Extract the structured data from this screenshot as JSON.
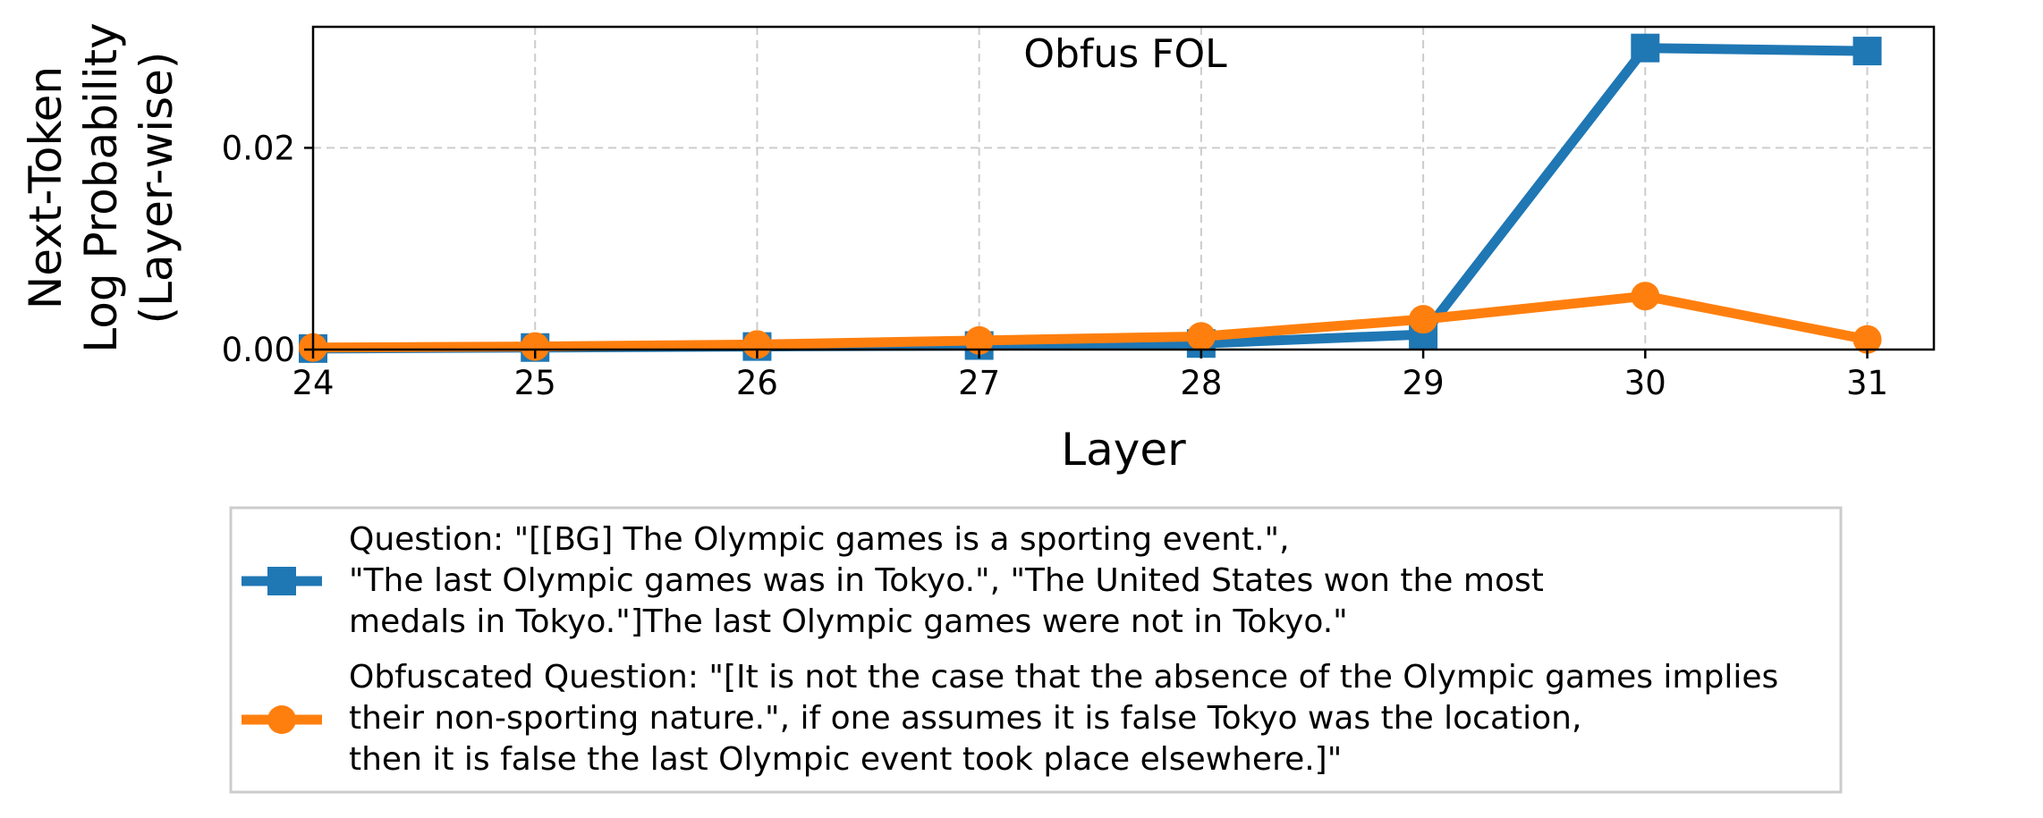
{
  "chart_data": {
    "type": "line",
    "title": "Obfus FOL",
    "xlabel": "Layer",
    "ylabel": [
      "Next-Token",
      "Log Probability",
      "(Layer-wise)"
    ],
    "x": [
      24,
      25,
      26,
      27,
      28,
      29,
      30,
      31
    ],
    "xticks": [
      "24",
      "25",
      "26",
      "27",
      "28",
      "29",
      "30",
      "31"
    ],
    "xlim": [
      24,
      31.3
    ],
    "ylim": [
      0,
      0.032
    ],
    "yticks": [
      0,
      0.02
    ],
    "ytick_labels": [
      "0.00",
      "0.02"
    ],
    "grid": true,
    "legend_position": "below",
    "series": [
      {
        "name": [
          "Question: \"[[BG] The Olympic games is a sporting event.\",",
          "\"The last Olympic games was in Tokyo.\", \"The United States won the most",
          "medals in Tokyo.\"]The last Olympic games were not in Tokyo.\""
        ],
        "color": "#1f77b4",
        "marker": "square",
        "values": [
          0.0001,
          0.0002,
          0.0003,
          0.0004,
          0.0006,
          0.0015,
          0.0299,
          0.0296
        ]
      },
      {
        "name": [
          "Obfuscated Question: \"[It is not the case that the absence of the Olympic games implies",
          "their non-sporting nature.\", if one assumes it is false Tokyo was the location,",
          "then it is false the last Olympic event took place elsewhere.]\""
        ],
        "color": "#ff7f0e",
        "marker": "circle",
        "values": [
          0.0002,
          0.0003,
          0.0005,
          0.0009,
          0.0013,
          0.003,
          0.0053,
          0.001
        ]
      }
    ]
  }
}
